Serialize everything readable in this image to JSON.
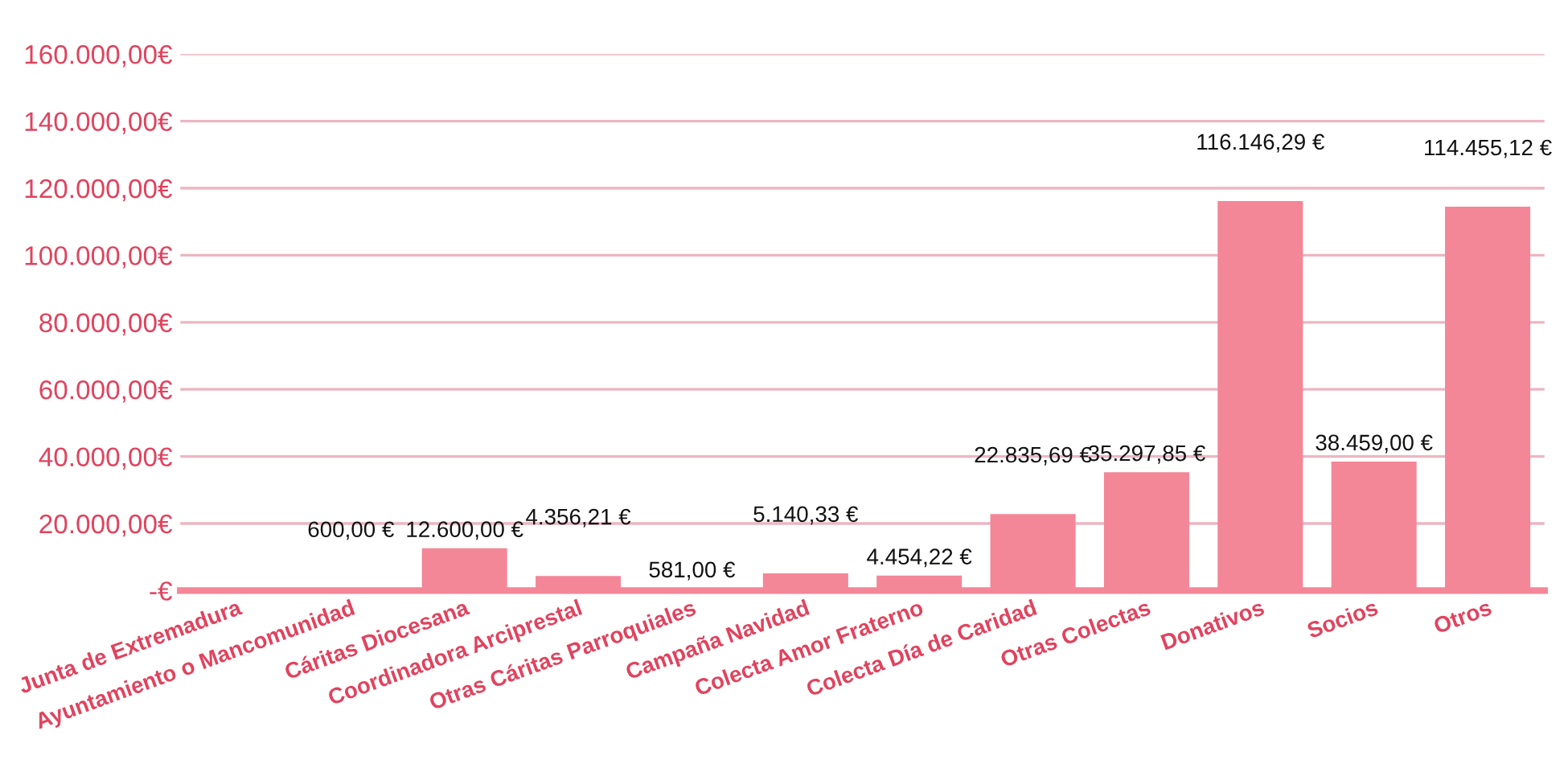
{
  "chart_data": {
    "type": "bar",
    "categories": [
      "Junta de Extremadura",
      "Ayuntamiento o Mancomunidad",
      "Cáritas Diocesana",
      "Coordinadora Arciprestal",
      "Otras Cáritas Parroquiales",
      "Campaña Navidad",
      "Colecta Amor Fraterno",
      "Colecta Día de Caridad",
      "Otras Colectas",
      "Donativos",
      "Socios",
      "Otros"
    ],
    "values": [
      500,
      600,
      12600,
      4356.21,
      581,
      5140.33,
      4454.22,
      22835.69,
      35297.85,
      116146.29,
      38459,
      114455.12
    ],
    "value_labels": [
      null,
      "600,00 €",
      "12.600,00 €",
      "4.356,21 €",
      "581,00 €",
      "5.140,33 €",
      "4.454,22 €",
      "22.835,69 €",
      "35.297,85 €",
      "116.146,29 €",
      "38.459,00 €",
      "114.455,12 €"
    ],
    "color": "#f38697",
    "ylim": [
      0,
      160000
    ],
    "yticks": [
      {
        "value": 0,
        "label": "-€"
      },
      {
        "value": 20000,
        "label": "20.000,00€"
      },
      {
        "value": 40000,
        "label": "40.000,00€"
      },
      {
        "value": 60000,
        "label": "60.000,00€"
      },
      {
        "value": 80000,
        "label": "80.000,00€"
      },
      {
        "value": 100000,
        "label": "100.000,00€"
      },
      {
        "value": 120000,
        "label": "120.000,00€"
      },
      {
        "value": 140000,
        "label": "140.000,00€"
      },
      {
        "value": 160000,
        "label": "160.000,00€"
      }
    ],
    "grid": "y"
  }
}
